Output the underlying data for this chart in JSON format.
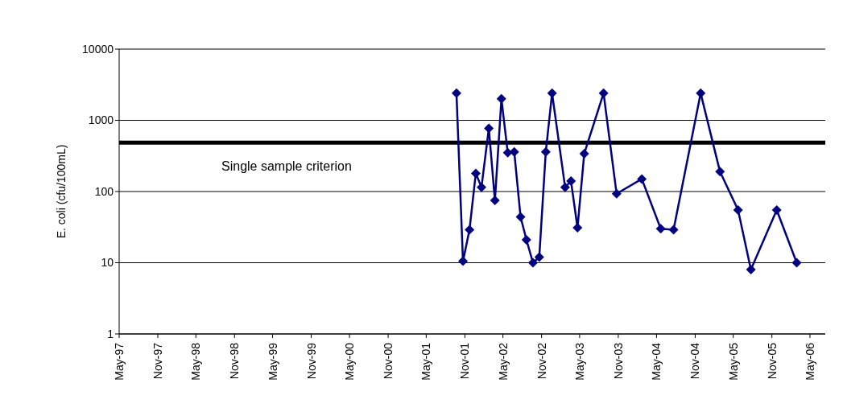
{
  "chart_data": {
    "type": "line",
    "ylabel": "E. coli (cfu/100mL)",
    "x": [
      "2001-09-22",
      "2001-10-23",
      "2001-11-23",
      "2001-12-23",
      "2002-01-19",
      "2002-02-23",
      "2002-03-24",
      "2002-04-24",
      "2002-05-24",
      "2002-06-24",
      "2002-07-24",
      "2002-08-21",
      "2002-09-21",
      "2002-10-21",
      "2002-11-21",
      "2002-12-21",
      "2003-02-21",
      "2003-03-21",
      "2003-04-21",
      "2003-05-23",
      "2003-08-23",
      "2003-10-24",
      "2004-02-21",
      "2004-05-21",
      "2004-07-21",
      "2004-11-27",
      "2005-02-27",
      "2005-05-24",
      "2005-07-24",
      "2005-11-24",
      "2006-02-27"
    ],
    "series": [
      {
        "color": "#000080",
        "values": [
          2400,
          10.5,
          29,
          180,
          115,
          770,
          75,
          2000,
          350,
          360,
          44,
          21,
          10,
          12,
          360,
          2400,
          115,
          140,
          31,
          340,
          2400,
          93,
          150,
          30,
          29,
          2400,
          190,
          55,
          8,
          55,
          10
        ]
      }
    ],
    "log": "y",
    "ylim": [
      1,
      10000
    ],
    "yticks": [
      1,
      10,
      100,
      1000,
      10000
    ],
    "xlim": [
      "1997-05-01",
      "2006-07-13"
    ],
    "xticks": [
      {
        "value": "1997-05-01",
        "label": "May-97"
      },
      {
        "value": "1997-11-01",
        "label": "Nov-97"
      },
      {
        "value": "1998-05-01",
        "label": "May-98"
      },
      {
        "value": "1998-11-01",
        "label": "Nov-98"
      },
      {
        "value": "1999-05-01",
        "label": "May-99"
      },
      {
        "value": "1999-11-01",
        "label": "Nov-99"
      },
      {
        "value": "2000-05-01",
        "label": "May-00"
      },
      {
        "value": "2000-11-01",
        "label": "Nov-00"
      },
      {
        "value": "2001-05-01",
        "label": "May-01"
      },
      {
        "value": "2001-11-01",
        "label": "Nov-01"
      },
      {
        "value": "2002-05-01",
        "label": "May-02"
      },
      {
        "value": "2002-11-01",
        "label": "Nov-02"
      },
      {
        "value": "2003-05-01",
        "label": "May-03"
      },
      {
        "value": "2003-11-01",
        "label": "Nov-03"
      },
      {
        "value": "2004-05-01",
        "label": "May-04"
      },
      {
        "value": "2004-11-01",
        "label": "Nov-04"
      },
      {
        "value": "2005-05-01",
        "label": "May-05"
      },
      {
        "value": "2005-11-01",
        "label": "Nov-05"
      },
      {
        "value": "2006-05-01",
        "label": "May-06"
      }
    ],
    "grid": "y",
    "legend": false,
    "marker": "diamond",
    "line_style": "solid",
    "ref_lines": [
      {
        "axis": "y",
        "value": 485,
        "label": "Single sample criterion",
        "color": "#000000"
      }
    ]
  }
}
